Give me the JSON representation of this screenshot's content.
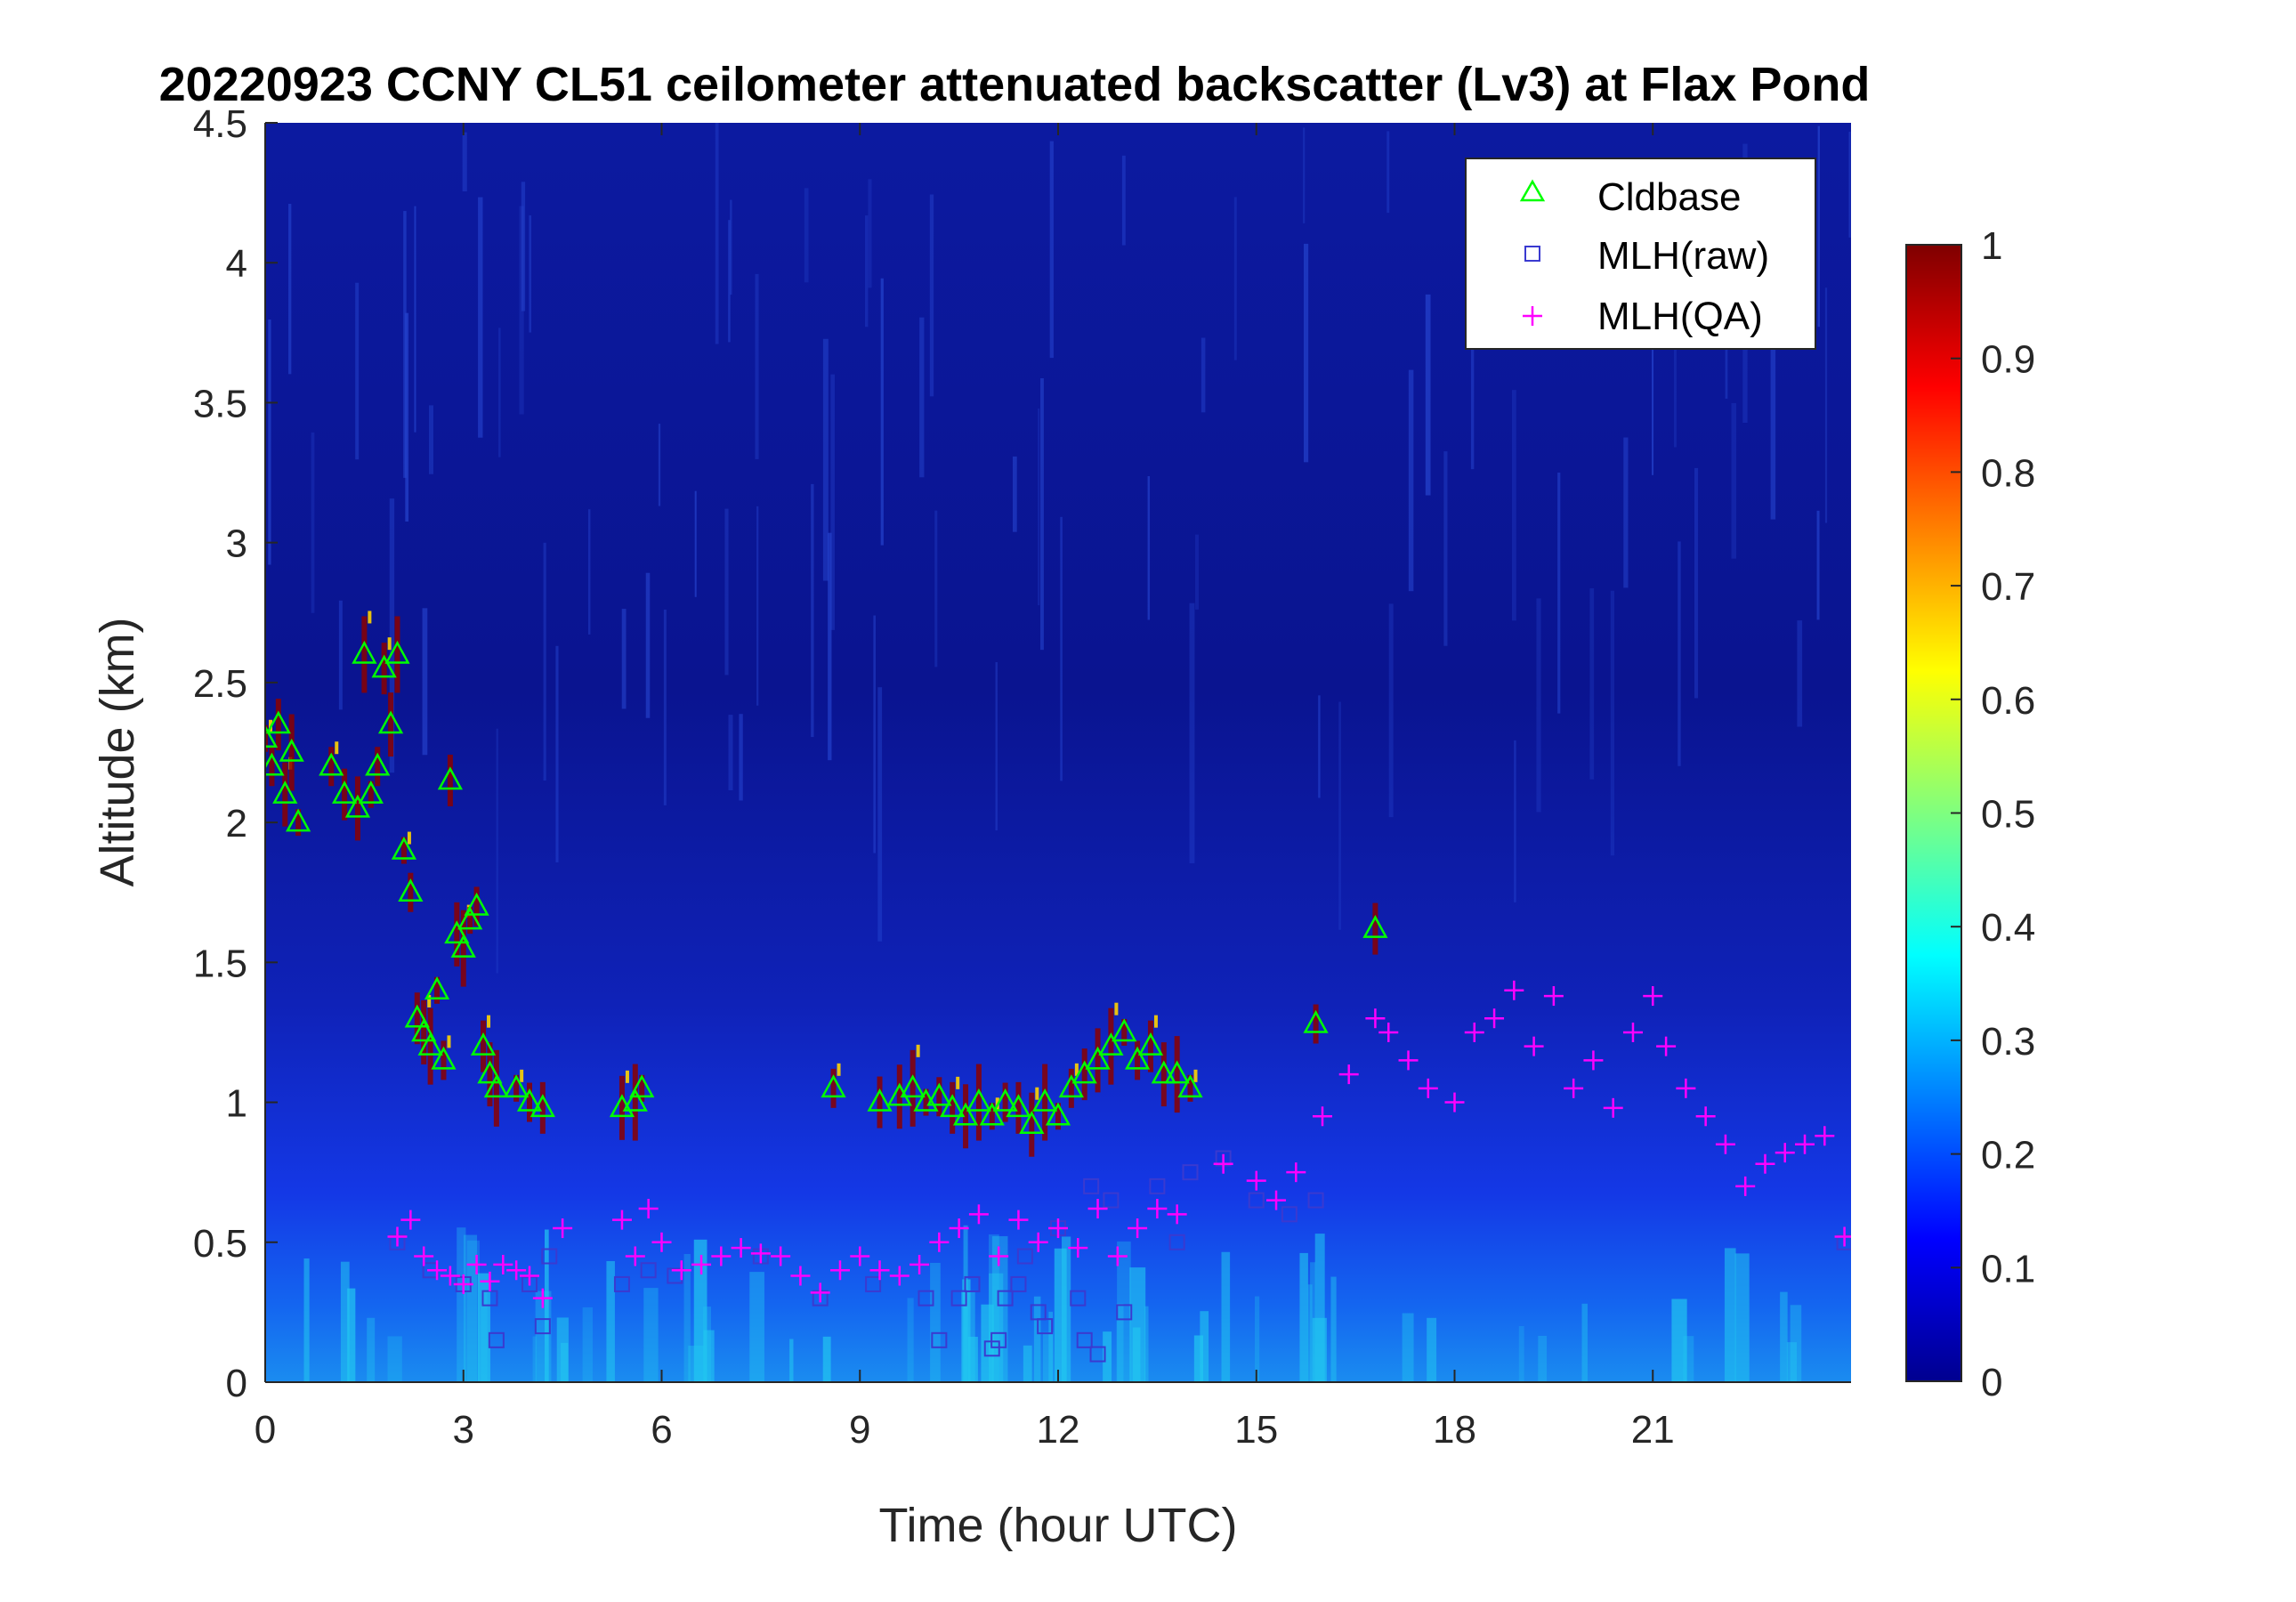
{
  "chart_data": {
    "type": "heatmap",
    "title": "20220923 CCNY CL51 ceilometer attenuated backscatter (Lv3) at Flax Pond",
    "xlabel": "Time (hour UTC)",
    "ylabel": "Altitude (km)",
    "xlim": [
      0,
      24
    ],
    "ylim": [
      0,
      4.5
    ],
    "x_ticks": [
      "0",
      "3",
      "6",
      "9",
      "12",
      "15",
      "18",
      "21"
    ],
    "y_ticks": [
      "0",
      "0.5",
      "1",
      "1.5",
      "2",
      "2.5",
      "3",
      "3.5",
      "4",
      "4.5"
    ],
    "colorbar": {
      "colormap": "jet",
      "range": [
        0,
        1
      ],
      "ticks": [
        "0",
        "0.1",
        "0.2",
        "0.3",
        "0.4",
        "0.5",
        "0.6",
        "0.7",
        "0.8",
        "0.9",
        "1"
      ]
    },
    "legend": {
      "location": "top-right",
      "entries": [
        {
          "label": "Cldbase",
          "marker": "triangle",
          "color": "#00ff00"
        },
        {
          "label": "MLH(raw)",
          "marker": "square",
          "color": "#3a3ad0"
        },
        {
          "label": "MLH(QA)",
          "marker": "plus",
          "color": "#ff00ff"
        }
      ]
    },
    "series": [
      {
        "name": "Cldbase",
        "x": [
          0.0,
          0.1,
          0.2,
          0.3,
          0.4,
          0.5,
          1.0,
          1.2,
          1.4,
          1.5,
          1.6,
          1.7,
          1.8,
          1.9,
          2.0,
          2.1,
          2.2,
          2.3,
          2.4,
          2.5,
          2.6,
          2.7,
          2.8,
          2.9,
          3.0,
          3.1,
          3.2,
          3.3,
          3.4,
          3.5,
          3.8,
          4.0,
          4.2,
          5.4,
          5.6,
          5.7,
          8.6,
          9.3,
          9.6,
          9.8,
          10.0,
          10.2,
          10.4,
          10.6,
          10.8,
          11.0,
          11.2,
          11.4,
          11.6,
          11.8,
          12.0,
          12.2,
          12.4,
          12.6,
          12.8,
          13.0,
          13.2,
          13.4,
          13.6,
          13.8,
          14.0,
          15.9,
          16.8
        ],
        "y": [
          2.3,
          2.2,
          2.35,
          2.1,
          2.25,
          2.0,
          2.2,
          2.1,
          2.05,
          2.6,
          2.1,
          2.2,
          2.55,
          2.35,
          2.6,
          1.9,
          1.75,
          1.3,
          1.25,
          1.2,
          1.4,
          1.15,
          2.15,
          1.6,
          1.55,
          1.65,
          1.7,
          1.2,
          1.1,
          1.05,
          1.05,
          1.0,
          0.98,
          0.98,
          1.0,
          1.05,
          1.05,
          1.0,
          1.02,
          1.05,
          1.0,
          1.02,
          0.98,
          0.95,
          1.0,
          0.95,
          1.0,
          0.98,
          0.92,
          1.0,
          0.95,
          1.05,
          1.1,
          1.15,
          1.2,
          1.25,
          1.15,
          1.2,
          1.1,
          1.1,
          1.05,
          1.28,
          1.62
        ]
      },
      {
        "name": "MLH(raw)",
        "x": [
          2.0,
          2.5,
          3.0,
          3.4,
          3.5,
          4.0,
          4.2,
          4.3,
          5.4,
          5.8,
          6.2,
          7.5,
          8.4,
          9.2,
          10.0,
          10.2,
          10.5,
          10.7,
          11.0,
          11.1,
          11.2,
          11.4,
          11.5,
          11.7,
          11.8,
          12.0,
          12.3,
          12.4,
          12.5,
          12.6,
          12.8,
          13.0,
          13.5,
          13.8,
          14.0,
          14.5,
          15.0,
          15.5,
          15.9,
          23.9
        ],
        "y": [
          0.5,
          0.4,
          0.35,
          0.3,
          0.15,
          0.35,
          0.2,
          0.45,
          0.35,
          0.4,
          0.38,
          0.45,
          0.3,
          0.35,
          0.3,
          0.15,
          0.3,
          0.35,
          0.12,
          0.15,
          0.3,
          0.35,
          0.45,
          0.25,
          0.2,
          0.55,
          0.3,
          0.15,
          0.7,
          0.1,
          0.65,
          0.25,
          0.7,
          0.5,
          0.75,
          0.8,
          0.65,
          0.6,
          0.65,
          0.5
        ]
      },
      {
        "name": "MLH(QA)",
        "x": [
          2.0,
          2.2,
          2.4,
          2.6,
          2.8,
          3.0,
          3.2,
          3.4,
          3.6,
          3.8,
          4.0,
          4.2,
          4.5,
          5.4,
          5.6,
          5.8,
          6.0,
          6.3,
          6.6,
          6.9,
          7.2,
          7.5,
          7.8,
          8.1,
          8.4,
          8.7,
          9.0,
          9.3,
          9.6,
          9.9,
          10.2,
          10.5,
          10.8,
          11.1,
          11.4,
          11.7,
          12.0,
          12.3,
          12.6,
          12.9,
          13.2,
          13.5,
          13.8,
          14.5,
          15.0,
          15.3,
          15.6,
          16.0,
          16.4,
          16.8,
          17.0,
          17.3,
          17.6,
          18.0,
          18.3,
          18.6,
          18.9,
          19.2,
          19.5,
          19.8,
          20.1,
          20.4,
          20.7,
          21.0,
          21.2,
          21.5,
          21.8,
          22.1,
          22.4,
          22.7,
          23.0,
          23.3,
          23.6,
          23.9
        ],
        "y": [
          0.52,
          0.58,
          0.45,
          0.4,
          0.38,
          0.35,
          0.42,
          0.36,
          0.42,
          0.4,
          0.38,
          0.3,
          0.55,
          0.58,
          0.45,
          0.62,
          0.5,
          0.4,
          0.42,
          0.45,
          0.48,
          0.46,
          0.45,
          0.38,
          0.32,
          0.4,
          0.45,
          0.4,
          0.38,
          0.42,
          0.5,
          0.55,
          0.6,
          0.45,
          0.58,
          0.5,
          0.55,
          0.48,
          0.62,
          0.45,
          0.55,
          0.62,
          0.6,
          0.78,
          0.72,
          0.65,
          0.75,
          0.95,
          1.1,
          1.3,
          1.25,
          1.15,
          1.05,
          1.0,
          1.25,
          1.3,
          1.4,
          1.2,
          1.38,
          1.05,
          1.15,
          0.98,
          1.25,
          1.38,
          1.2,
          1.05,
          0.95,
          0.85,
          0.7,
          0.78,
          0.82,
          0.85,
          0.88,
          0.52
        ]
      }
    ]
  }
}
